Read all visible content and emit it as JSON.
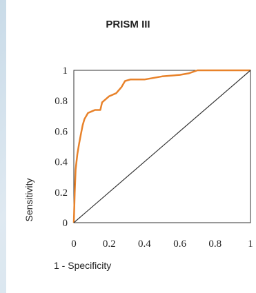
{
  "chart_data": {
    "type": "line",
    "title": "PRISM III",
    "xlabel": "1 - Specificity",
    "ylabel": "Sensitivity",
    "xlim": [
      0,
      1
    ],
    "ylim": [
      0,
      1
    ],
    "x_ticks": [
      "0",
      "0.2",
      "0.4",
      "0.6",
      "0.8",
      "1"
    ],
    "y_ticks": [
      "0",
      "0.2",
      "0.4",
      "0.6",
      "0.8",
      "1"
    ],
    "grid": false,
    "legend": "none",
    "series": [
      {
        "color": "#e8822a",
        "x": [
          0,
          0.005,
          0.01,
          0.02,
          0.03,
          0.04,
          0.05,
          0.06,
          0.08,
          0.1,
          0.12,
          0.15,
          0.16,
          0.2,
          0.24,
          0.27,
          0.29,
          0.32,
          0.4,
          0.5,
          0.6,
          0.65,
          0.7,
          0.8,
          0.9,
          1.0
        ],
        "y": [
          0,
          0.2,
          0.35,
          0.45,
          0.52,
          0.58,
          0.64,
          0.68,
          0.72,
          0.73,
          0.74,
          0.74,
          0.79,
          0.83,
          0.85,
          0.89,
          0.93,
          0.94,
          0.94,
          0.96,
          0.97,
          0.98,
          1.0,
          1.0,
          1.0,
          1.0
        ]
      },
      {
        "color": "#333333",
        "x": [
          0,
          1
        ],
        "y": [
          0,
          1
        ]
      }
    ]
  }
}
